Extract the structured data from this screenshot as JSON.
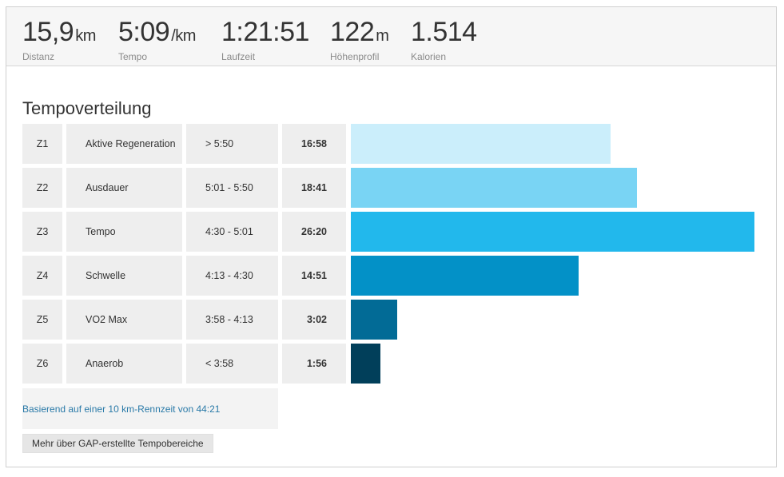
{
  "stats": [
    {
      "value": "15,9",
      "unit": "km",
      "label": "Distanz"
    },
    {
      "value": "5:09",
      "unit": "/km",
      "label": "Tempo"
    },
    {
      "value": "1:21:51",
      "unit": "",
      "label": "Laufzeit"
    },
    {
      "value": "122",
      "unit": "m",
      "label": "Höhenprofil"
    },
    {
      "value": "1.514",
      "unit": "",
      "label": "Kalorien"
    }
  ],
  "section_title": "Tempoverteilung",
  "zones": [
    {
      "zone": "Z1",
      "name": "Aktive Regeneration",
      "range": "> 5:50",
      "time": "16:58",
      "minutes": 16.97,
      "color": "#cbeefb"
    },
    {
      "zone": "Z2",
      "name": "Ausdauer",
      "range": "5:01 - 5:50",
      "time": "18:41",
      "minutes": 18.68,
      "color": "#79d4f4"
    },
    {
      "zone": "Z3",
      "name": "Tempo",
      "range": "4:30 - 5:01",
      "time": "26:20",
      "minutes": 26.33,
      "color": "#22b8ec"
    },
    {
      "zone": "Z4",
      "name": "Schwelle",
      "range": "4:13 - 4:30",
      "time": "14:51",
      "minutes": 14.85,
      "color": "#0391c7"
    },
    {
      "zone": "Z5",
      "name": "VO2 Max",
      "range": "3:58 - 4:13",
      "time": "3:02",
      "minutes": 3.03,
      "color": "#026b96"
    },
    {
      "zone": "Z6",
      "name": "Anaerob",
      "range": "< 3:58",
      "time": "1:56",
      "minutes": 1.93,
      "color": "#013f5a"
    }
  ],
  "note": "Basierend auf einer 10 km-Rennzeit von 44:21",
  "gap_button": "Mehr über GAP-erstellte Tempobereiche"
}
